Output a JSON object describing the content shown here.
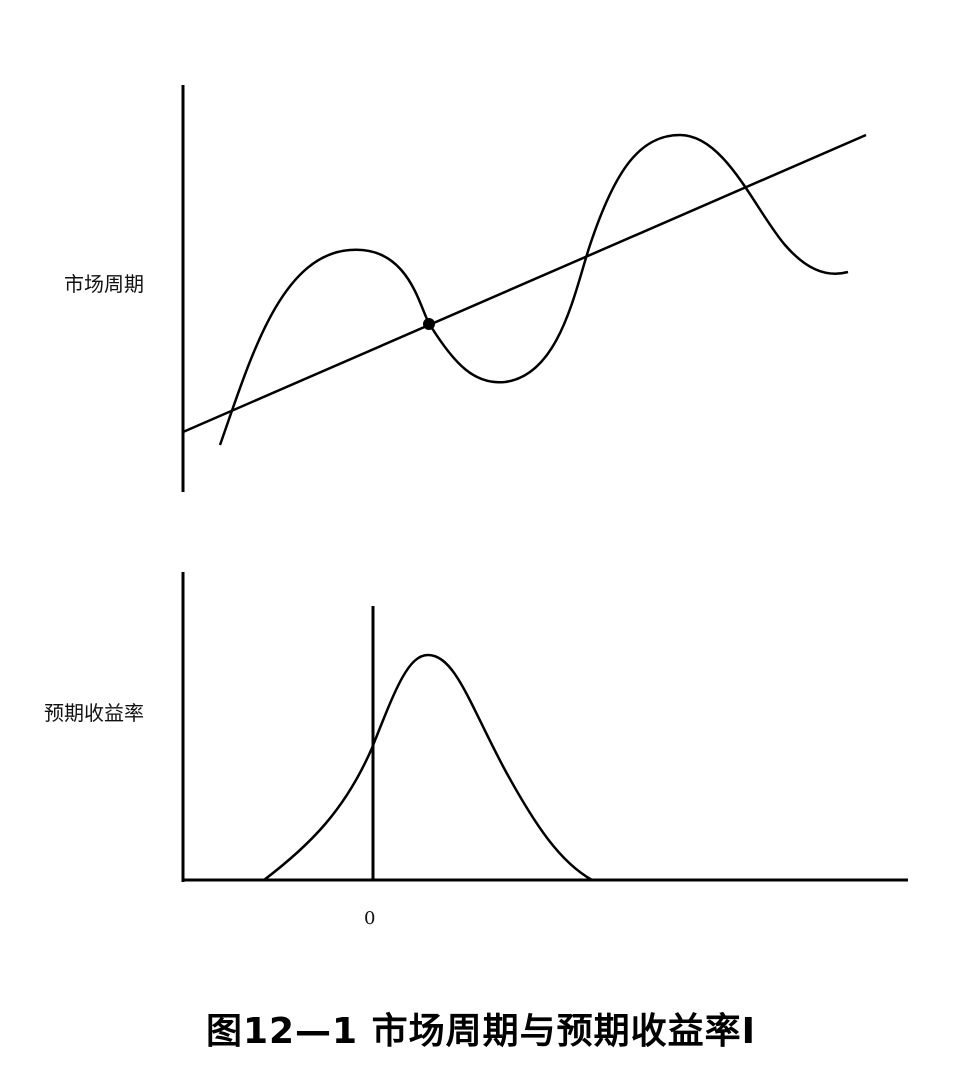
{
  "top_panel": {
    "label": "市场周期"
  },
  "bottom_panel": {
    "label": "预期收益率",
    "zero_tick": "0"
  },
  "caption": "图12—1 市场周期与预期收益率I",
  "colors": {
    "ink": "#000000",
    "background": "#ffffff"
  }
}
